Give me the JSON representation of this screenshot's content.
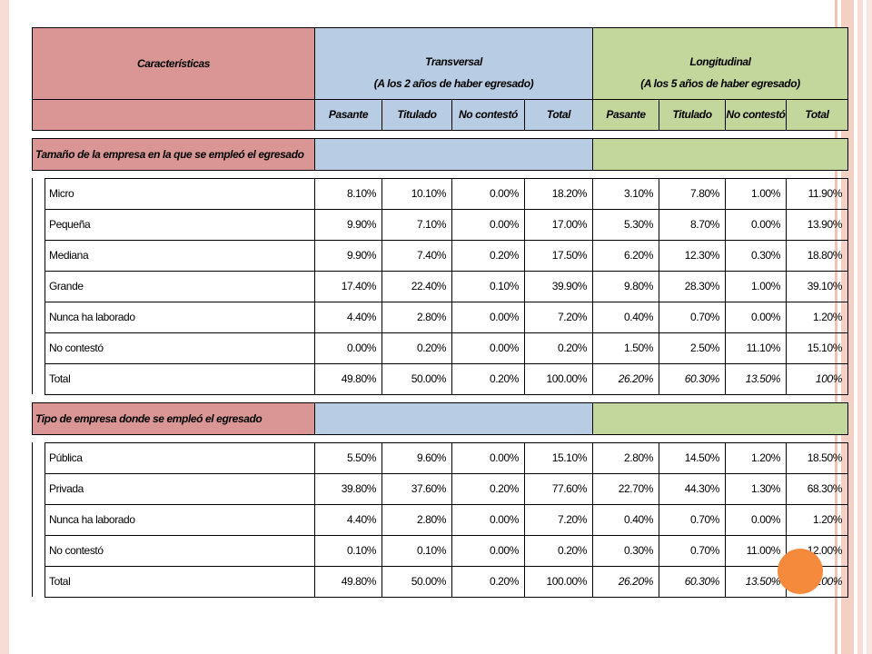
{
  "header": {
    "caracteristicas": "Características",
    "transversal_title": "Transversal",
    "transversal_subtitle": "(A los 2 años de haber egresado)",
    "longitudinal_title": "Longitudinal",
    "longitudinal_subtitle": "(A los 5 años de haber egresado)",
    "subheaders": [
      "Pasante",
      "Titulado",
      "No contestó",
      "Total",
      "Pasante",
      "Titulado",
      "No contestó",
      "Total"
    ]
  },
  "section1": {
    "title": "Tamaño de la empresa en la que se empleó el egresado",
    "rows": [
      {
        "label": "Micro",
        "values": [
          "8.10%",
          "10.10%",
          "0.00%",
          "18.20%",
          "3.10%",
          "7.80%",
          "1.00%",
          "11.90%"
        ]
      },
      {
        "label": "Pequeña",
        "values": [
          "9.90%",
          "7.10%",
          "0.00%",
          "17.00%",
          "5.30%",
          "8.70%",
          "0.00%",
          "13.90%"
        ]
      },
      {
        "label": "Mediana",
        "values": [
          "9.90%",
          "7.40%",
          "0.20%",
          "17.50%",
          "6.20%",
          "12.30%",
          "0.30%",
          "18.80%"
        ]
      },
      {
        "label": "Grande",
        "values": [
          "17.40%",
          "22.40%",
          "0.10%",
          "39.90%",
          "9.80%",
          "28.30%",
          "1.00%",
          "39.10%"
        ]
      },
      {
        "label": "Nunca ha laborado",
        "values": [
          "4.40%",
          "2.80%",
          "0.00%",
          "7.20%",
          "0.40%",
          "0.70%",
          "0.00%",
          "1.20%"
        ]
      },
      {
        "label": "No contestó",
        "values": [
          "0.00%",
          "0.20%",
          "0.00%",
          "0.20%",
          "1.50%",
          "2.50%",
          "11.10%",
          "15.10%"
        ]
      },
      {
        "label": "Total",
        "values": [
          "49.80%",
          "50.00%",
          "0.20%",
          "100.00%",
          "26.20%",
          "60.30%",
          "13.50%",
          "100%"
        ]
      }
    ]
  },
  "section2": {
    "title": "Tipo de empresa donde se empleó el egresado",
    "rows": [
      {
        "label": "Pública",
        "values": [
          "5.50%",
          "9.60%",
          "0.00%",
          "15.10%",
          "2.80%",
          "14.50%",
          "1.20%",
          "18.50%"
        ]
      },
      {
        "label": "Privada",
        "values": [
          "39.80%",
          "37.60%",
          "0.20%",
          "77.60%",
          "22.70%",
          "44.30%",
          "1.30%",
          "68.30%"
        ]
      },
      {
        "label": "Nunca ha laborado",
        "values": [
          "4.40%",
          "2.80%",
          "0.00%",
          "7.20%",
          "0.40%",
          "0.70%",
          "0.00%",
          "1.20%"
        ]
      },
      {
        "label": "No contestó",
        "values": [
          "0.10%",
          "0.10%",
          "0.00%",
          "0.20%",
          "0.30%",
          "0.70%",
          "11.00%",
          "12.00%"
        ]
      },
      {
        "label": "Total",
        "values": [
          "49.80%",
          "50.00%",
          "0.20%",
          "100.00%",
          "26.20%",
          "60.30%",
          "13.50%",
          "100%"
        ]
      }
    ]
  },
  "colors": {
    "red": "#d99694",
    "blue": "#b8cce4",
    "green": "#c3d69b",
    "accent_circle": "#f58a3c"
  }
}
